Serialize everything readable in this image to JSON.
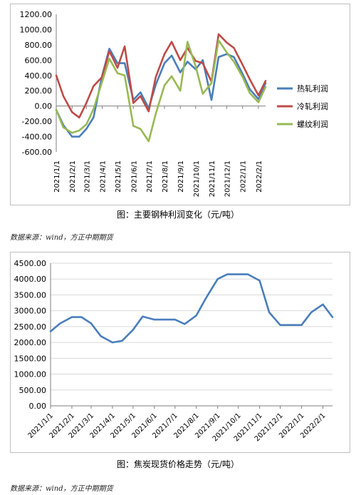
{
  "chart_data": [
    {
      "type": "line",
      "x": [
        "2021/1/1",
        "2021/1/15",
        "2021/2/1",
        "2021/2/15",
        "2021/3/1",
        "2021/3/15",
        "2021/4/1",
        "2021/4/15",
        "2021/5/1",
        "2021/5/15",
        "2021/6/1",
        "2021/6/15",
        "2021/7/1",
        "2021/7/15",
        "2021/8/1",
        "2021/8/15",
        "2021/9/1",
        "2021/9/15",
        "2021/10/1",
        "2021/10/15",
        "2021/11/1",
        "2021/11/15",
        "2021/12/1",
        "2021/12/15",
        "2022/1/1",
        "2022/1/15",
        "2022/2/1",
        "2022/2/15"
      ],
      "xticks": [
        "2021/1/1",
        "2021/2/1",
        "2021/3/1",
        "2021/4/1",
        "2021/5/1",
        "2021/6/1",
        "2021/7/1",
        "2021/8/1",
        "2021/9/1",
        "2021/10/1",
        "2021/11/1",
        "2021/12/1",
        "2022/1/1",
        "2022/2/1"
      ],
      "ylim": [
        -600,
        1200
      ],
      "yticks": [
        "-600.00",
        "-400.00",
        "-200.00",
        "0.00",
        "200.00",
        "400.00",
        "600.00",
        "800.00",
        "1000.00",
        "1200.00"
      ],
      "legend_position": "right",
      "series": [
        {
          "name": "热轧利润",
          "color": "#4a7ebb",
          "values": [
            -50,
            -250,
            -400,
            -400,
            -300,
            -150,
            400,
            750,
            560,
            560,
            80,
            180,
            -30,
            280,
            560,
            660,
            440,
            580,
            480,
            600,
            80,
            640,
            680,
            640,
            420,
            220,
            90,
            300
          ]
        },
        {
          "name": "冷轧利润",
          "color": "#be4b48",
          "values": [
            400,
            130,
            -80,
            -150,
            40,
            260,
            380,
            720,
            500,
            780,
            40,
            130,
            -70,
            380,
            680,
            840,
            600,
            760,
            590,
            560,
            320,
            940,
            830,
            760,
            540,
            350,
            140,
            330
          ]
        },
        {
          "name": "螺纹利润",
          "color": "#98b954",
          "values": [
            -50,
            -280,
            -350,
            -320,
            -240,
            -40,
            320,
            620,
            430,
            400,
            -260,
            -300,
            -460,
            -100,
            270,
            390,
            200,
            840,
            520,
            160,
            300,
            860,
            700,
            580,
            380,
            170,
            50,
            250
          ]
        }
      ]
    },
    {
      "type": "line",
      "x": [
        "2021/1/1",
        "2021/1/15",
        "2021/2/1",
        "2021/2/15",
        "2021/3/1",
        "2021/3/15",
        "2021/4/1",
        "2021/4/15",
        "2021/5/1",
        "2021/5/15",
        "2021/6/1",
        "2021/6/15",
        "2021/7/1",
        "2021/7/15",
        "2021/8/1",
        "2021/8/15",
        "2021/9/1",
        "2021/9/15",
        "2021/10/1",
        "2021/10/15",
        "2021/11/1",
        "2021/11/15",
        "2021/12/1",
        "2021/12/15",
        "2022/1/1",
        "2022/1/15",
        "2022/2/1",
        "2022/2/15"
      ],
      "xticks": [
        "2021/1/1",
        "2021/2/1",
        "2021/3/1",
        "2021/4/1",
        "2021/5/1",
        "2021/6/1",
        "2021/7/1",
        "2021/8/1",
        "2021/9/1",
        "2021/10/1",
        "2021/11/1",
        "2021/12/1",
        "2022/1/1",
        "2022/2/1"
      ],
      "ylim": [
        0,
        4500
      ],
      "yticks": [
        "0.00",
        "500.00",
        "1000.00",
        "1500.00",
        "2000.00",
        "2500.00",
        "3000.00",
        "3500.00",
        "4000.00",
        "4500.00"
      ],
      "series": [
        {
          "name": "",
          "color": "#4a7ebb",
          "values": [
            2350,
            2600,
            2800,
            2800,
            2600,
            2200,
            2000,
            2050,
            2400,
            2820,
            2720,
            2720,
            2720,
            2580,
            2850,
            3400,
            4000,
            4150,
            4150,
            4150,
            3950,
            2950,
            2550,
            2550,
            2550,
            2950,
            3200,
            2800
          ]
        }
      ]
    }
  ],
  "captions": {
    "chart1": "图：主要钢种利润变化（元/吨）",
    "chart2": "图：焦炭现货价格走势（元/吨）"
  },
  "sources": {
    "chart1": "数据来源：wind，方正中期期货",
    "chart2": "数据来源：wind，方正中期期货"
  }
}
